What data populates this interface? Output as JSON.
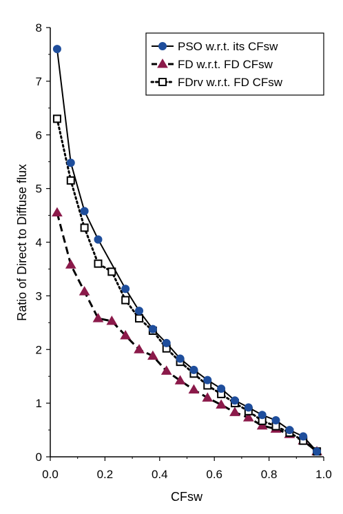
{
  "chart_data": {
    "type": "line",
    "xlabel": "CFsw",
    "ylabel": "Ratio of Direct to Diffuse flux",
    "xlim": [
      0,
      1.0
    ],
    "ylim": [
      0,
      8
    ],
    "xticks": [
      "0.0",
      "0.2",
      "0.4",
      "0.6",
      "0.8",
      "1.0"
    ],
    "yticks": [
      "0",
      "1",
      "2",
      "3",
      "4",
      "5",
      "6",
      "7",
      "8"
    ],
    "grid": false,
    "legend_position": "top-right",
    "series": [
      {
        "name": "PSO w.r.t. its CFsw",
        "marker": "circle",
        "line": "solid",
        "color": "#1f4e9c",
        "x": [
          0.025,
          0.075,
          0.125,
          0.175,
          0.275,
          0.325,
          0.375,
          0.425,
          0.475,
          0.525,
          0.575,
          0.625,
          0.675,
          0.725,
          0.775,
          0.825,
          0.875,
          0.925,
          0.975
        ],
        "y": [
          7.6,
          5.48,
          4.58,
          4.05,
          3.13,
          2.72,
          2.38,
          2.12,
          1.83,
          1.62,
          1.43,
          1.27,
          1.05,
          0.92,
          0.78,
          0.68,
          0.5,
          0.38,
          0.1
        ]
      },
      {
        "name": "FD w.r.t. FD CFsw",
        "marker": "triangle",
        "line": "dashed",
        "color": "#8b1a4a",
        "x": [
          0.025,
          0.075,
          0.125,
          0.175,
          0.225,
          0.275,
          0.325,
          0.375,
          0.425,
          0.475,
          0.525,
          0.575,
          0.625,
          0.675,
          0.725,
          0.775,
          0.825,
          0.875,
          0.925,
          0.975
        ],
        "y": [
          4.55,
          3.58,
          3.08,
          2.58,
          2.53,
          2.26,
          2.0,
          1.88,
          1.6,
          1.42,
          1.25,
          1.1,
          0.97,
          0.83,
          0.73,
          0.58,
          0.52,
          0.42,
          0.3,
          0.1
        ]
      },
      {
        "name": "FDrv w.r.t. FD CFsw",
        "marker": "square-open",
        "line": "dotted",
        "color": "#000000",
        "x": [
          0.025,
          0.075,
          0.125,
          0.175,
          0.225,
          0.275,
          0.325,
          0.375,
          0.425,
          0.475,
          0.525,
          0.575,
          0.625,
          0.675,
          0.725,
          0.775,
          0.825,
          0.875,
          0.925,
          0.975
        ],
        "y": [
          6.3,
          5.15,
          4.27,
          3.6,
          3.45,
          2.92,
          2.58,
          2.35,
          2.02,
          1.77,
          1.55,
          1.33,
          1.17,
          1.0,
          0.85,
          0.67,
          0.57,
          0.45,
          0.3,
          0.1
        ]
      }
    ]
  }
}
